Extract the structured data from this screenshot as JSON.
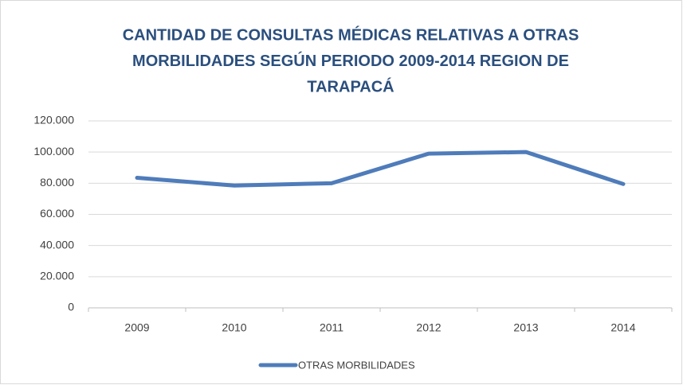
{
  "chart_data": {
    "type": "line",
    "title": [
      "CANTIDAD DE CONSULTAS MÉDICAS RELATIVAS A OTRAS",
      "MORBILIDADES SEGÚN PERIODO 2009-2014 REGION DE",
      "TARAPACÁ"
    ],
    "categories": [
      "2009",
      "2010",
      "2011",
      "2012",
      "2013",
      "2014"
    ],
    "series": [
      {
        "name": "OTRAS MORBILIDADES",
        "color": "#4f7cba",
        "values": [
          83500,
          78500,
          80000,
          99000,
          100000,
          79500
        ]
      }
    ],
    "ylim": [
      0,
      120000
    ],
    "yticks": [
      0,
      {
        "value": 20000,
        "label": "20.000"
      },
      {
        "value": 40000,
        "label": "40.000"
      },
      {
        "value": 60000,
        "label": "60.000"
      },
      {
        "value": 80000,
        "label": "80.000"
      },
      {
        "value": 100000,
        "label": "100.000"
      },
      {
        "value": 120000,
        "label": "120.000"
      }
    ],
    "grid": true,
    "legend": "bottom"
  }
}
